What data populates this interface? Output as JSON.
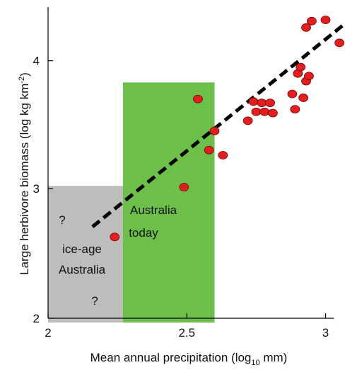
{
  "chart_data": {
    "type": "scatter",
    "xlabel": "Mean annual precipitation (log",
    "xlabel_sub": "10",
    "xlabel_end": " mm)",
    "ylabel": "Large herbivore biomass (log kg km",
    "ylabel_sup": "-2",
    "ylabel_end": ")",
    "xlim": [
      2.0,
      3.07
    ],
    "ylim": [
      1.95,
      4.42
    ],
    "x_ticks": [
      2,
      2.5,
      3
    ],
    "x_tick_labels": [
      "2",
      "2.5",
      "3"
    ],
    "y_ticks": [
      2,
      3,
      4
    ],
    "y_tick_labels": [
      "2",
      "3",
      "4"
    ],
    "grid": false,
    "legend": "none",
    "colors": {
      "points": "#e02020",
      "ice_age_region": "#bdbdbd",
      "australia_today_region": "#6cc04a",
      "fit_line": "#000000"
    },
    "regions": [
      {
        "name": "ice-age-region",
        "x": [
          2.0,
          2.27
        ],
        "y": [
          1.95,
          3.02
        ],
        "labels": [
          "?",
          "ice-age",
          "Australia",
          "?"
        ]
      },
      {
        "name": "australia-today-region",
        "x": [
          2.27,
          2.6
        ],
        "y": [
          1.95,
          3.83
        ],
        "labels": [
          "Australia",
          "today"
        ]
      }
    ],
    "fit_line": {
      "x": [
        2.16,
        3.07
      ],
      "y": [
        2.7,
        4.29
      ]
    },
    "points": [
      {
        "x": 2.24,
        "y": 2.62
      },
      {
        "x": 2.49,
        "y": 3.01
      },
      {
        "x": 2.54,
        "y": 3.7
      },
      {
        "x": 2.58,
        "y": 3.3
      },
      {
        "x": 2.6,
        "y": 3.45
      },
      {
        "x": 2.63,
        "y": 3.26
      },
      {
        "x": 2.72,
        "y": 3.53
      },
      {
        "x": 2.74,
        "y": 3.68
      },
      {
        "x": 2.75,
        "y": 3.6
      },
      {
        "x": 2.77,
        "y": 3.67
      },
      {
        "x": 2.78,
        "y": 3.6
      },
      {
        "x": 2.8,
        "y": 3.67
      },
      {
        "x": 2.81,
        "y": 3.59
      },
      {
        "x": 2.88,
        "y": 3.74
      },
      {
        "x": 2.89,
        "y": 3.62
      },
      {
        "x": 2.9,
        "y": 3.9
      },
      {
        "x": 2.91,
        "y": 3.95
      },
      {
        "x": 2.92,
        "y": 3.71
      },
      {
        "x": 2.93,
        "y": 3.84
      },
      {
        "x": 2.94,
        "y": 3.88
      },
      {
        "x": 2.93,
        "y": 4.26
      },
      {
        "x": 2.95,
        "y": 4.31
      },
      {
        "x": 3.0,
        "y": 4.32
      },
      {
        "x": 3.05,
        "y": 4.14
      }
    ]
  }
}
